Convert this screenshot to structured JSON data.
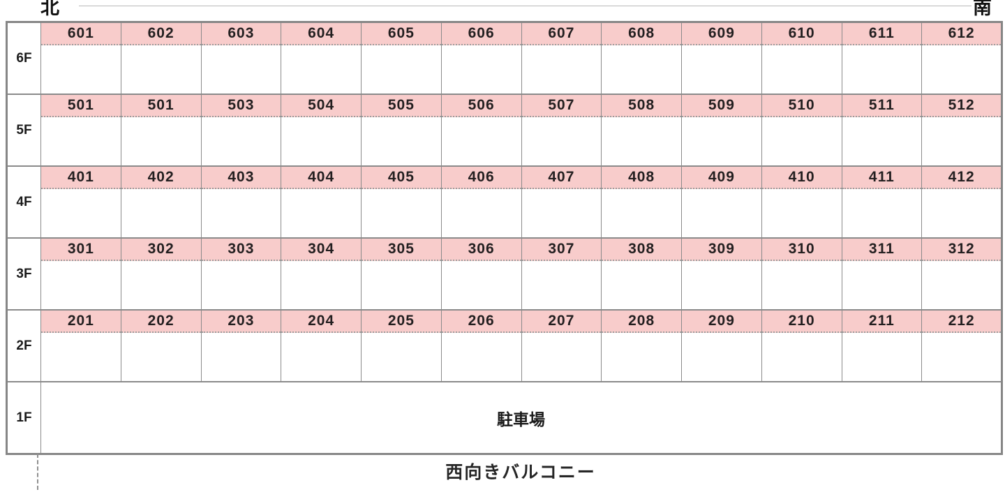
{
  "compass": {
    "north": "北",
    "south": "南"
  },
  "floors": [
    {
      "label": "6F",
      "rooms": [
        "601",
        "602",
        "603",
        "604",
        "605",
        "606",
        "607",
        "608",
        "609",
        "610",
        "611",
        "612"
      ]
    },
    {
      "label": "5F",
      "rooms": [
        "501",
        "501",
        "503",
        "504",
        "505",
        "506",
        "507",
        "508",
        "509",
        "510",
        "511",
        "512"
      ]
    },
    {
      "label": "4F",
      "rooms": [
        "401",
        "402",
        "403",
        "404",
        "405",
        "406",
        "407",
        "408",
        "409",
        "410",
        "411",
        "412"
      ]
    },
    {
      "label": "3F",
      "rooms": [
        "301",
        "302",
        "303",
        "304",
        "305",
        "306",
        "307",
        "308",
        "309",
        "310",
        "311",
        "312"
      ]
    },
    {
      "label": "2F",
      "rooms": [
        "201",
        "202",
        "203",
        "204",
        "205",
        "206",
        "207",
        "208",
        "209",
        "210",
        "211",
        "212"
      ]
    },
    {
      "label": "1F",
      "merged": "駐車場"
    }
  ],
  "footer": {
    "balcony_label": "西向きバルコニー"
  },
  "colors": {
    "room_band_bg": "#f8cccb",
    "grid_border": "#8a8a8a"
  }
}
